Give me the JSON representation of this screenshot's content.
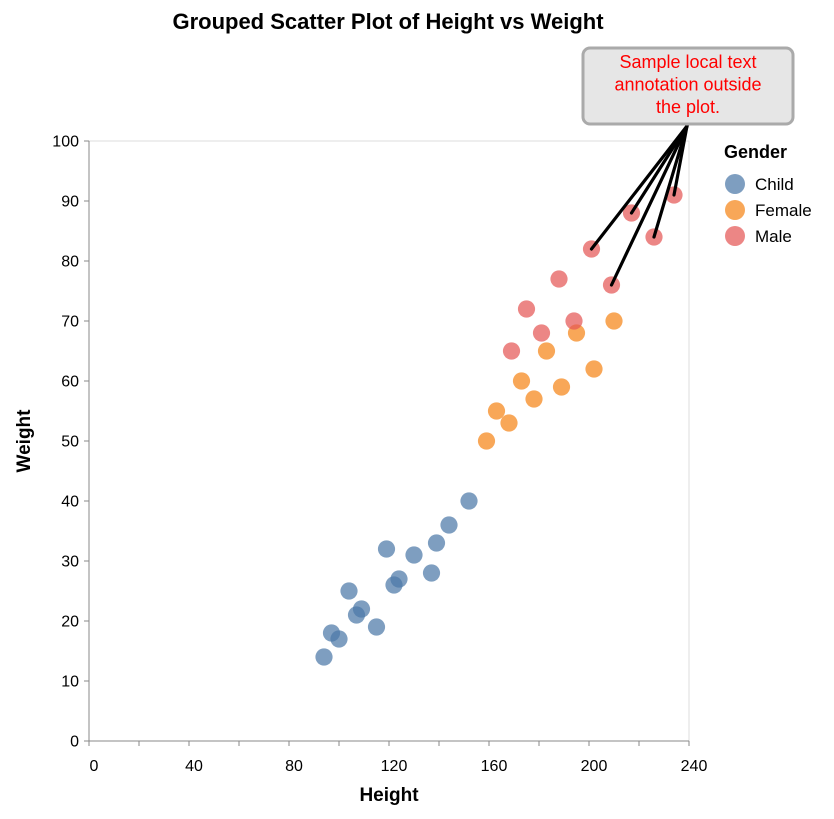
{
  "chart_data": {
    "type": "scatter",
    "title": "Grouped Scatter Plot of Height vs Weight",
    "xlabel": "Height",
    "ylabel": "Weight",
    "xlim": [
      0,
      240
    ],
    "ylim": [
      0,
      100
    ],
    "x_ticks": [
      0,
      40,
      80,
      120,
      160,
      200,
      240
    ],
    "x_minor_ticks": [
      20,
      60,
      100,
      140,
      180,
      220
    ],
    "y_ticks": [
      0,
      10,
      20,
      30,
      40,
      50,
      60,
      70,
      80,
      90,
      100
    ],
    "grid": false,
    "legend": {
      "title": "Gender",
      "placement": "right"
    },
    "series": [
      {
        "name": "Child",
        "color": "#4c78a8",
        "points": [
          {
            "x": 94,
            "y": 14
          },
          {
            "x": 97,
            "y": 18
          },
          {
            "x": 100,
            "y": 17
          },
          {
            "x": 104,
            "y": 25
          },
          {
            "x": 107,
            "y": 21
          },
          {
            "x": 109,
            "y": 22
          },
          {
            "x": 115,
            "y": 19
          },
          {
            "x": 119,
            "y": 32
          },
          {
            "x": 122,
            "y": 26
          },
          {
            "x": 124,
            "y": 27
          },
          {
            "x": 130,
            "y": 31
          },
          {
            "x": 137,
            "y": 28
          },
          {
            "x": 139,
            "y": 33
          },
          {
            "x": 144,
            "y": 36
          },
          {
            "x": 152,
            "y": 40
          }
        ]
      },
      {
        "name": "Female",
        "color": "#f58518",
        "points": [
          {
            "x": 159,
            "y": 50
          },
          {
            "x": 163,
            "y": 55
          },
          {
            "x": 168,
            "y": 53
          },
          {
            "x": 173,
            "y": 60
          },
          {
            "x": 178,
            "y": 57
          },
          {
            "x": 183,
            "y": 65
          },
          {
            "x": 189,
            "y": 59
          },
          {
            "x": 195,
            "y": 68
          },
          {
            "x": 202,
            "y": 62
          },
          {
            "x": 210,
            "y": 70
          }
        ]
      },
      {
        "name": "Male",
        "color": "#e45756",
        "points": [
          {
            "x": 169,
            "y": 65
          },
          {
            "x": 175,
            "y": 72
          },
          {
            "x": 181,
            "y": 68
          },
          {
            "x": 188,
            "y": 77
          },
          {
            "x": 194,
            "y": 70
          },
          {
            "x": 201,
            "y": 82
          },
          {
            "x": 209,
            "y": 76
          },
          {
            "x": 217,
            "y": 88
          },
          {
            "x": 226,
            "y": 84
          },
          {
            "x": 234,
            "y": 91
          }
        ]
      }
    ],
    "annotation": {
      "text_lines": [
        "Sample local text",
        "annotation outside",
        "the plot."
      ],
      "text_color": "#ff0000",
      "box_fill": "#e6e6e6",
      "box_stroke": "#aaaaaa",
      "targets": [
        {
          "x": 201,
          "y": 82
        },
        {
          "x": 209,
          "y": 76
        },
        {
          "x": 217,
          "y": 88
        },
        {
          "x": 226,
          "y": 84
        },
        {
          "x": 234,
          "y": 91
        }
      ]
    }
  }
}
